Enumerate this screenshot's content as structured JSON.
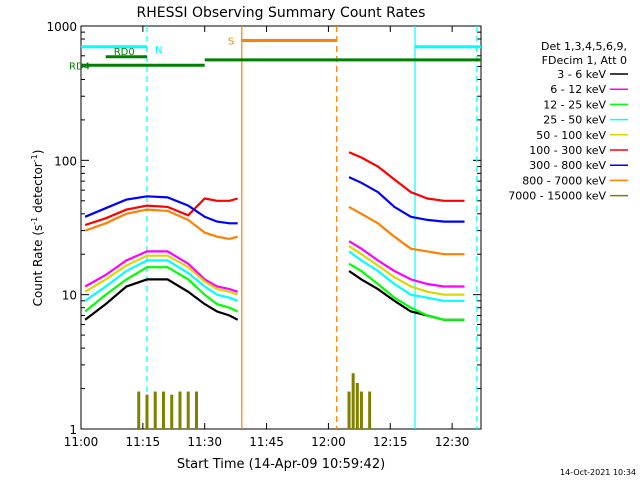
{
  "chart_data": {
    "type": "line",
    "title": "RHESSI Observing Summary Count Rates",
    "xlabel": "Start Time (14-Apr-09 10:59:42)",
    "ylabel_main": "Count Rate (s",
    "ylabel_sup1": "-1",
    "ylabel_mid": " detector",
    "ylabel_sup2": "-1",
    "ylabel_end": ")",
    "yscale": "log",
    "xlim": [
      "11:00",
      "12:37"
    ],
    "ylim": [
      1,
      1000
    ],
    "x_ticks": [
      "11:00",
      "11:15",
      "11:30",
      "11:45",
      "12:00",
      "12:15",
      "12:30"
    ],
    "y_ticks": [
      "1",
      "10",
      "100",
      "1000"
    ],
    "legend_header": [
      "Det 1,3,4,5,6,9,",
      "FDecim 1, Att 0"
    ],
    "legend_position": "top-right",
    "series": [
      {
        "name": "3 - 6 keV",
        "color": "#000000",
        "x": [
          "11:01",
          "11:06",
          "11:11",
          "11:16",
          "11:21",
          "11:26",
          "11:30",
          "11:33",
          "11:36",
          "11:38",
          "12:05",
          "12:08",
          "12:12",
          "12:16",
          "12:20",
          "12:24",
          "12:28",
          "12:33"
        ],
        "values": [
          6.5,
          8.5,
          11.5,
          13,
          13,
          10.5,
          8.5,
          7.5,
          7,
          6.5,
          15,
          13,
          11,
          9,
          7.5,
          7,
          6.5,
          6.5
        ]
      },
      {
        "name": "6 - 12 keV",
        "color": "#ff00ff",
        "x": [
          "11:01",
          "11:06",
          "11:11",
          "11:16",
          "11:21",
          "11:26",
          "11:30",
          "11:33",
          "11:36",
          "11:38",
          "12:05",
          "12:08",
          "12:12",
          "12:16",
          "12:20",
          "12:24",
          "12:28",
          "12:33"
        ],
        "values": [
          11.5,
          14,
          18,
          21,
          21,
          17,
          13,
          11.5,
          11,
          10.5,
          25,
          22,
          18,
          15,
          13,
          12,
          11.5,
          11.5
        ]
      },
      {
        "name": "12 - 25 keV",
        "color": "#00ff00",
        "x": [
          "11:01",
          "11:06",
          "11:11",
          "11:16",
          "11:21",
          "11:26",
          "11:30",
          "11:33",
          "11:36",
          "11:38",
          "12:05",
          "12:08",
          "12:12",
          "12:16",
          "12:20",
          "12:24",
          "12:28",
          "12:33"
        ],
        "values": [
          7.5,
          10,
          13,
          16,
          16,
          13,
          10,
          8.5,
          8,
          7.5,
          17,
          15,
          12,
          9.5,
          8,
          7,
          6.5,
          6.5
        ]
      },
      {
        "name": "25 - 50 keV",
        "color": "#00ffff",
        "x": [
          "11:01",
          "11:06",
          "11:11",
          "11:16",
          "11:21",
          "11:26",
          "11:30",
          "11:33",
          "11:36",
          "11:38",
          "12:05",
          "12:08",
          "12:12",
          "12:16",
          "12:20",
          "12:24",
          "12:28",
          "12:33"
        ],
        "values": [
          9,
          11.5,
          15,
          18,
          18,
          14.5,
          11.5,
          10,
          9.5,
          9,
          21,
          18,
          15,
          12,
          10,
          9.5,
          9,
          9
        ]
      },
      {
        "name": "50 - 100 keV",
        "color": "#d8d800",
        "x": [
          "11:01",
          "11:06",
          "11:11",
          "11:16",
          "11:21",
          "11:26",
          "11:30",
          "11:33",
          "11:36",
          "11:38",
          "12:05",
          "12:08",
          "12:12",
          "12:16",
          "12:20",
          "12:24",
          "12:28",
          "12:33"
        ],
        "values": [
          10.5,
          13,
          16.5,
          19.5,
          19.5,
          16,
          12.5,
          11,
          10.5,
          10,
          23,
          20,
          16.5,
          13.5,
          11.5,
          10.5,
          10,
          10
        ]
      },
      {
        "name": "100 - 300 keV",
        "color": "#ff0000",
        "x": [
          "11:01",
          "11:06",
          "11:11",
          "11:16",
          "11:21",
          "11:26",
          "11:30",
          "11:33",
          "11:36",
          "11:38",
          "12:05",
          "12:08",
          "12:12",
          "12:16",
          "12:20",
          "12:24",
          "12:28",
          "12:33"
        ],
        "values": [
          33,
          37,
          43,
          46,
          45,
          39,
          52,
          50,
          50,
          52,
          115,
          105,
          90,
          72,
          58,
          52,
          50,
          50
        ]
      },
      {
        "name": "300 - 800 keV",
        "color": "#0000ff",
        "x": [
          "11:01",
          "11:06",
          "11:11",
          "11:16",
          "11:21",
          "11:26",
          "11:30",
          "11:33",
          "11:36",
          "11:38",
          "12:05",
          "12:08",
          "12:12",
          "12:16",
          "12:20",
          "12:24",
          "12:28",
          "12:33"
        ],
        "values": [
          38,
          44,
          51,
          54,
          53,
          46,
          38,
          35,
          34,
          34,
          75,
          68,
          58,
          45,
          38,
          36,
          35,
          35
        ]
      },
      {
        "name": "800 - 7000 keV",
        "color": "#ff8000",
        "x": [
          "11:01",
          "11:06",
          "11:11",
          "11:16",
          "11:21",
          "11:26",
          "11:30",
          "11:33",
          "11:36",
          "11:38",
          "12:05",
          "12:08",
          "12:12",
          "12:16",
          "12:20",
          "12:24",
          "12:28",
          "12:33"
        ],
        "values": [
          30,
          34,
          40,
          43,
          42,
          36,
          29,
          27,
          26,
          27,
          45,
          40,
          34,
          27,
          22,
          21,
          20,
          20
        ]
      },
      {
        "name": "7000 - 15000 keV",
        "color": "#808000",
        "x": [
          "11:14",
          "11:16",
          "11:18",
          "11:20",
          "11:22",
          "11:24",
          "11:26",
          "11:28",
          "12:05",
          "12:06",
          "12:07",
          "12:08",
          "12:10"
        ],
        "values": [
          1.9,
          1.8,
          1.9,
          1.9,
          1.8,
          1.9,
          1.9,
          1.9,
          1.9,
          2.6,
          2.2,
          1.9,
          1.9
        ]
      }
    ],
    "annotations": {
      "bars": [
        {
          "label": "N",
          "color": "#00ffff",
          "x_start": "11:00",
          "x_end": "11:16",
          "value": 700
        },
        {
          "label": "N",
          "color": "#00ffff",
          "x_start": "12:21",
          "x_end": "12:37",
          "value": 700
        },
        {
          "label": "RD0",
          "color": "#008000",
          "x_start": "11:06",
          "x_end": "11:16",
          "value": 590
        },
        {
          "label": "RD4",
          "color": "#008000",
          "x_start": "11:00",
          "x_end": "11:30",
          "value": 510
        },
        {
          "label": "RD4",
          "color": "#008000",
          "x_start": "11:30",
          "x_end": "12:37",
          "value": 560
        },
        {
          "label": "S",
          "color": "#ff8000",
          "x_start": "11:39",
          "x_end": "12:02",
          "value": 780
        }
      ],
      "vlines": [
        {
          "x": "11:16",
          "color": "#00ffff",
          "style": "dashed"
        },
        {
          "x": "11:39",
          "color": "#ff8000",
          "style": "solid"
        },
        {
          "x": "12:02",
          "color": "#ff8000",
          "style": "dashed"
        },
        {
          "x": "12:21",
          "color": "#00ffff",
          "style": "solid"
        },
        {
          "x": "12:36",
          "color": "#00ffff",
          "style": "dashed"
        }
      ]
    },
    "grid": false
  },
  "footer": {
    "timestamp": "14-Oct-2021 10:34"
  }
}
